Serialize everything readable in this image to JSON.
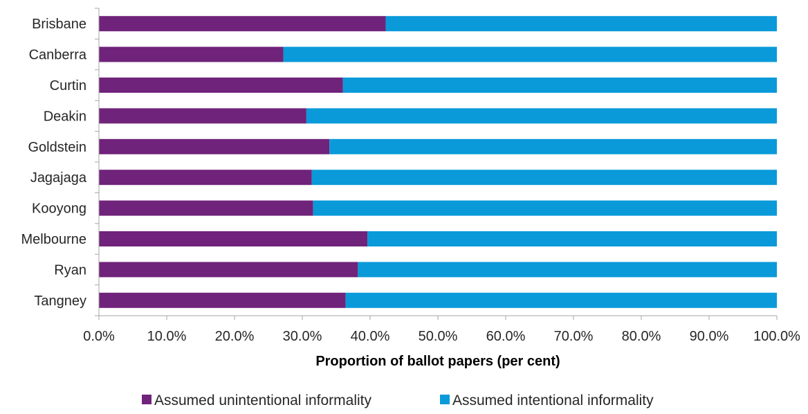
{
  "chart_data": {
    "type": "bar",
    "orientation": "horizontal",
    "stacked": "percent",
    "categories": [
      "Brisbane",
      "Canberra",
      "Curtin",
      "Deakin",
      "Goldstein",
      "Jagajaga",
      "Kooyong",
      "Melbourne",
      "Ryan",
      "Tangney"
    ],
    "series": [
      {
        "name": "Assumed unintentional informality",
        "color": "#70237a",
        "values": [
          42.3,
          27.2,
          36.0,
          30.6,
          34.0,
          31.4,
          31.6,
          39.6,
          38.2,
          36.4
        ]
      },
      {
        "name": "Assumed intentional informality",
        "color": "#0a9ad9",
        "values": [
          57.7,
          72.8,
          64.0,
          69.4,
          66.0,
          68.6,
          68.4,
          60.4,
          61.8,
          63.6
        ]
      }
    ],
    "xlabel": "Proportion of ballot papers (per cent)",
    "xlim": [
      0,
      100
    ],
    "x_ticks": [
      "0.0%",
      "10.0%",
      "20.0%",
      "30.0%",
      "40.0%",
      "50.0%",
      "60.0%",
      "70.0%",
      "80.0%",
      "90.0%",
      "100.0%"
    ],
    "grid": false,
    "legend": "bottom-center"
  }
}
